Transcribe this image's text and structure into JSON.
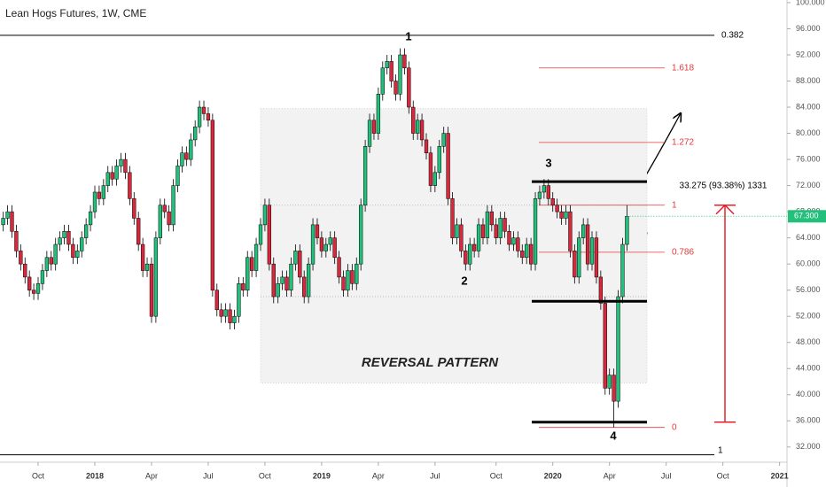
{
  "chart_data": {
    "type": "candlestick",
    "title": "Lean Hogs Futures, 1W, CME",
    "up_color": "#22c07a",
    "down_color": "#d8283c",
    "xlim": [
      -8.74,
      171.7
    ],
    "ylim": [
      29.67,
      100.4
    ],
    "xticks": [
      {
        "value": 0,
        "label": "Oct"
      },
      {
        "value": 13,
        "label": "2018"
      },
      {
        "value": 26,
        "label": "Apr"
      },
      {
        "value": 39,
        "label": "Jul"
      },
      {
        "value": 52,
        "label": "Oct"
      },
      {
        "value": 65,
        "label": "2019"
      },
      {
        "value": 78,
        "label": "Apr"
      },
      {
        "value": 91,
        "label": "Jul"
      },
      {
        "value": 105,
        "label": "Oct"
      },
      {
        "value": 118,
        "label": "2020"
      },
      {
        "value": 131,
        "label": "Apr"
      },
      {
        "value": 144,
        "label": "Jul"
      },
      {
        "value": 157,
        "label": "Oct"
      },
      {
        "value": 170,
        "label": "2021"
      }
    ],
    "yticks": [
      {
        "value": 32,
        "label": "32.000"
      },
      {
        "value": 36,
        "label": "36.000"
      },
      {
        "value": 40,
        "label": "40.000"
      },
      {
        "value": 44,
        "label": "44.000"
      },
      {
        "value": 48,
        "label": "48.000"
      },
      {
        "value": 52,
        "label": "52.000"
      },
      {
        "value": 56,
        "label": "56.000"
      },
      {
        "value": 60,
        "label": "60.000"
      },
      {
        "value": 64,
        "label": "64.000"
      },
      {
        "value": 68,
        "label": "68.000"
      },
      {
        "value": 72,
        "label": "72.000"
      },
      {
        "value": 76,
        "label": "76.000"
      },
      {
        "value": 80,
        "label": "80.000"
      },
      {
        "value": 84,
        "label": "84.000"
      },
      {
        "value": 88,
        "label": "88.000"
      },
      {
        "value": 92,
        "label": "92.000"
      },
      {
        "value": 96,
        "label": "96.000"
      },
      {
        "value": 100,
        "label": "100.000"
      }
    ],
    "candles": [
      [
        -8,
        66,
        68,
        65,
        67
      ],
      [
        -7,
        67,
        69,
        66,
        68
      ],
      [
        -6,
        68,
        69,
        64,
        65
      ],
      [
        -5,
        65,
        66,
        61,
        62
      ],
      [
        -4,
        62,
        63,
        59,
        60
      ],
      [
        -3,
        60,
        61,
        57,
        58
      ],
      [
        -2,
        58,
        59,
        55,
        56
      ],
      [
        -1,
        56,
        57,
        54.5,
        55.5
      ],
      [
        0,
        55.5,
        58,
        54.5,
        57
      ],
      [
        1,
        57,
        60,
        56,
        59
      ],
      [
        2,
        59,
        62,
        58,
        61
      ],
      [
        3,
        61,
        62,
        59,
        60
      ],
      [
        4,
        60,
        64,
        59,
        63
      ],
      [
        5,
        63,
        65,
        62,
        64
      ],
      [
        6,
        64,
        66,
        63,
        65
      ],
      [
        7,
        65,
        66,
        62,
        63
      ],
      [
        8,
        63,
        64,
        60,
        61
      ],
      [
        9,
        61,
        63,
        60,
        62
      ],
      [
        10,
        62,
        65,
        61,
        64
      ],
      [
        11,
        64,
        67,
        63,
        66
      ],
      [
        12,
        66,
        69,
        65,
        68
      ],
      [
        13,
        68,
        72,
        67,
        71
      ],
      [
        14,
        71,
        72,
        69,
        70
      ],
      [
        15,
        70,
        73,
        69,
        72
      ],
      [
        16,
        72,
        75,
        71,
        74
      ],
      [
        17,
        74,
        75,
        72,
        73
      ],
      [
        18,
        73,
        76,
        72,
        75
      ],
      [
        19,
        75,
        77,
        74,
        76
      ],
      [
        20,
        76,
        77,
        73,
        74
      ],
      [
        21,
        74,
        75,
        69,
        70
      ],
      [
        22,
        70,
        71,
        66,
        67
      ],
      [
        23,
        67,
        68,
        62,
        63
      ],
      [
        24,
        63,
        64,
        58,
        59
      ],
      [
        25,
        59,
        61,
        58,
        60
      ],
      [
        26,
        60,
        61,
        51,
        52
      ],
      [
        27,
        52,
        65,
        51,
        64
      ],
      [
        28,
        64,
        70,
        63,
        69
      ],
      [
        29,
        69,
        70,
        67,
        68
      ],
      [
        30,
        68,
        69,
        65,
        66
      ],
      [
        31,
        66,
        73,
        65,
        72
      ],
      [
        32,
        72,
        76,
        71,
        75
      ],
      [
        33,
        75,
        78,
        74,
        77
      ],
      [
        34,
        77,
        78,
        75,
        76
      ],
      [
        35,
        76,
        80,
        75,
        79
      ],
      [
        36,
        79,
        82,
        78,
        81
      ],
      [
        37,
        81,
        85,
        80,
        84
      ],
      [
        38,
        84,
        85,
        82,
        83
      ],
      [
        39,
        83,
        84,
        81,
        82
      ],
      [
        40,
        82,
        83,
        55,
        56
      ],
      [
        41,
        56,
        57,
        52,
        53
      ],
      [
        42,
        53,
        54,
        51,
        52
      ],
      [
        43,
        52,
        54,
        51,
        53
      ],
      [
        44,
        53,
        54,
        50,
        51
      ],
      [
        45,
        51,
        53,
        50,
        52
      ],
      [
        46,
        52,
        58,
        51,
        57
      ],
      [
        47,
        57,
        58,
        55,
        56
      ],
      [
        48,
        56,
        62,
        55,
        61
      ],
      [
        49,
        61,
        62,
        58,
        59
      ],
      [
        50,
        59,
        64,
        58,
        63
      ],
      [
        51,
        63,
        67,
        62,
        66
      ],
      [
        52,
        66,
        70,
        65,
        69
      ],
      [
        53,
        69,
        70,
        59,
        60
      ],
      [
        54,
        60,
        61,
        54,
        55
      ],
      [
        55,
        55,
        58,
        54,
        57
      ],
      [
        56,
        57,
        59,
        56,
        58
      ],
      [
        57,
        58,
        59,
        55,
        56
      ],
      [
        58,
        56,
        61,
        55,
        60
      ],
      [
        59,
        60,
        63,
        59,
        62
      ],
      [
        60,
        62,
        63,
        57,
        58
      ],
      [
        61,
        58,
        59,
        54,
        55
      ],
      [
        62,
        55,
        61,
        54,
        60
      ],
      [
        63,
        60,
        67,
        59,
        66
      ],
      [
        64,
        66,
        67,
        63,
        64
      ],
      [
        65,
        64,
        65,
        61,
        62
      ],
      [
        66,
        62,
        64,
        61,
        63
      ],
      [
        67,
        63,
        65,
        62,
        64
      ],
      [
        68,
        64,
        65,
        60,
        61
      ],
      [
        69,
        61,
        62,
        57,
        58
      ],
      [
        70,
        58,
        59,
        55,
        56
      ],
      [
        71,
        56,
        60,
        55,
        59
      ],
      [
        72,
        59,
        60,
        56,
        57
      ],
      [
        73,
        57,
        61,
        56,
        60
      ],
      [
        74,
        60,
        70,
        59,
        69
      ],
      [
        75,
        69,
        79,
        68,
        78
      ],
      [
        76,
        78,
        83,
        77,
        82
      ],
      [
        77,
        82,
        83,
        79,
        80
      ],
      [
        78,
        80,
        87,
        79,
        86
      ],
      [
        79,
        86,
        91,
        85,
        90
      ],
      [
        80,
        90,
        92,
        89,
        91
      ],
      [
        81,
        91,
        92,
        87,
        88
      ],
      [
        82,
        88,
        89,
        85,
        86
      ],
      [
        83,
        86,
        93,
        85,
        92
      ],
      [
        84,
        92,
        93,
        89,
        90
      ],
      [
        85,
        90,
        91,
        83,
        84
      ],
      [
        86,
        84,
        85,
        79,
        80
      ],
      [
        87,
        80,
        83,
        79,
        82
      ],
      [
        88,
        82,
        83,
        78,
        79
      ],
      [
        89,
        79,
        80,
        76,
        77
      ],
      [
        90,
        77,
        78,
        71,
        72
      ],
      [
        91,
        72,
        75,
        71,
        74
      ],
      [
        92,
        74,
        79,
        73,
        78
      ],
      [
        93,
        78,
        81,
        77,
        80
      ],
      [
        94,
        80,
        81,
        69,
        70
      ],
      [
        95,
        70,
        71,
        63,
        64
      ],
      [
        96,
        64,
        67,
        63,
        66
      ],
      [
        97,
        66,
        67,
        61,
        62
      ],
      [
        98,
        62,
        63,
        59,
        60
      ],
      [
        99,
        60,
        64,
        59,
        63
      ],
      [
        100,
        63,
        64,
        61,
        62
      ],
      [
        101,
        62,
        67,
        61,
        66
      ],
      [
        102,
        66,
        67,
        63,
        64
      ],
      [
        103,
        64,
        69,
        63,
        68
      ],
      [
        104,
        68,
        69,
        65,
        66
      ],
      [
        105,
        66,
        67,
        63,
        64
      ],
      [
        106,
        64,
        68,
        63,
        67
      ],
      [
        107,
        67,
        68,
        64,
        65
      ],
      [
        108,
        65,
        66,
        62,
        63
      ],
      [
        109,
        63,
        65,
        62,
        64
      ],
      [
        110,
        64,
        65,
        61,
        62
      ],
      [
        111,
        62,
        63,
        60,
        61
      ],
      [
        112,
        61,
        64,
        60,
        63
      ],
      [
        113,
        63,
        64,
        59,
        60
      ],
      [
        114,
        60,
        71,
        59,
        70
      ],
      [
        115,
        70,
        72,
        69,
        71
      ],
      [
        116,
        71,
        73,
        70,
        72
      ],
      [
        117,
        72,
        73,
        69,
        70
      ],
      [
        118,
        70,
        71,
        68,
        69
      ],
      [
        119,
        69,
        70,
        67,
        68
      ],
      [
        120,
        68,
        69,
        66,
        67
      ],
      [
        121,
        67,
        69,
        66,
        68
      ],
      [
        122,
        68,
        69,
        61,
        62
      ],
      [
        123,
        62,
        63,
        57,
        58
      ],
      [
        124,
        58,
        65,
        57,
        64
      ],
      [
        125,
        64,
        67,
        63,
        66
      ],
      [
        126,
        66,
        67,
        59,
        60
      ],
      [
        127,
        60,
        65,
        59,
        64
      ],
      [
        128,
        64,
        65,
        57,
        58
      ],
      [
        129,
        58,
        59,
        53,
        54
      ],
      [
        130,
        54,
        55,
        40,
        41
      ],
      [
        131,
        41,
        44,
        40,
        43
      ],
      [
        132,
        43,
        44,
        35,
        39
      ],
      [
        133,
        39,
        56,
        38,
        55
      ],
      [
        134,
        55,
        64,
        54,
        63
      ],
      [
        135,
        63,
        69,
        62,
        67.3
      ]
    ],
    "last_price": {
      "value": 67.3,
      "label": "67.300"
    },
    "top_line": {
      "value": 95,
      "label": "0.382"
    },
    "bottom_line": {
      "value": 30.8,
      "label": "1"
    },
    "fib_levels": [
      {
        "value": 90,
        "label": "1.618"
      },
      {
        "value": 78.6,
        "label": "1.272"
      },
      {
        "value": 69,
        "label": "1"
      },
      {
        "value": 61.8,
        "label": "0.786"
      },
      {
        "value": 35,
        "label": "0"
      }
    ],
    "zone": [
      41.8,
      83.8
    ],
    "dotted_levels": [
      69,
      55
    ],
    "pattern_lines": [
      72.6,
      54.3,
      35.8
    ],
    "pattern_points": [
      "1",
      "2",
      "3",
      "4"
    ],
    "annotation": "REVERSAL PATTERN",
    "measure": {
      "from": 35.8,
      "to": 69,
      "label": "33.275 (93.38%) 1331"
    }
  }
}
